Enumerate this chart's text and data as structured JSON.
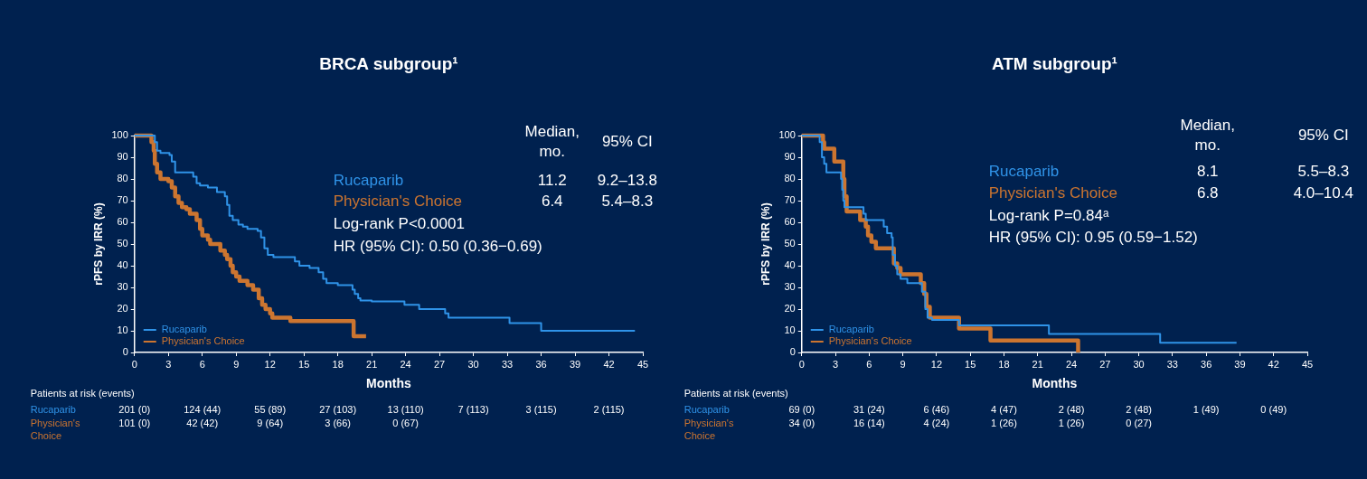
{
  "chart_data": [
    {
      "type": "step",
      "title": "BRCA subgroup¹",
      "xlabel": "Months",
      "ylabel": "rPFS by IRR (%)",
      "xlim": [
        0,
        45
      ],
      "xticks": [
        0,
        3,
        6,
        9,
        12,
        15,
        18,
        21,
        24,
        27,
        30,
        33,
        36,
        39,
        42,
        45
      ],
      "ylim": [
        0,
        100
      ],
      "yticks": [
        0,
        10,
        20,
        30,
        40,
        50,
        60,
        70,
        80,
        90,
        100
      ],
      "grid": false,
      "legend": "bottom left",
      "series": [
        {
          "name": "Rucaparib",
          "color": "#2f93e8",
          "x": [
            0,
            1.7,
            1.8,
            2.0,
            2.3,
            3.1,
            3.3,
            3.6,
            4.8,
            5.2,
            5.5,
            5.8,
            6.5,
            7.3,
            8.0,
            8.2,
            8.4,
            8.7,
            9.2,
            9.6,
            10.0,
            10.9,
            11.2,
            11.5,
            11.8,
            12.3,
            13.8,
            14.2,
            14.6,
            15.5,
            16.3,
            16.7,
            17.0,
            18.0,
            19.1,
            19.3,
            19.5,
            19.8,
            20.0,
            21.0,
            23.9,
            25.2,
            27.5,
            27.8,
            33.2,
            36.0,
            44.3
          ],
          "values": [
            100,
            100,
            97,
            93,
            92,
            91,
            88,
            83,
            83,
            81,
            78,
            77,
            76,
            74,
            72,
            68,
            63,
            61,
            59,
            58,
            57,
            56,
            53,
            48,
            45,
            44,
            44,
            42,
            40,
            39,
            37,
            34,
            32,
            31,
            31,
            29,
            27,
            25,
            24,
            23.5,
            22,
            20,
            18,
            16,
            13.5,
            10,
            10
          ]
        },
        {
          "name": "Physician's Choice",
          "color": "#cc7530",
          "x": [
            0,
            1.0,
            1.5,
            1.7,
            1.8,
            2.0,
            2.3,
            3.0,
            3.3,
            3.6,
            3.9,
            4.2,
            4.6,
            4.9,
            5.5,
            5.8,
            6.0,
            6.5,
            6.7,
            7.4,
            7.6,
            8.0,
            8.2,
            8.5,
            8.7,
            9.0,
            9.3,
            10.0,
            10.2,
            10.5,
            11.0,
            11.3,
            11.6,
            12.0,
            12.2,
            13.6,
            13.8,
            19.4,
            20.5
          ],
          "values": [
            100,
            100,
            97,
            93,
            87,
            83,
            80,
            79,
            76,
            72,
            69,
            67,
            66,
            64,
            61,
            57,
            54,
            52,
            50,
            50,
            47,
            45,
            43,
            40,
            37,
            35,
            33,
            31,
            31,
            29,
            25,
            22,
            20,
            18,
            16,
            16,
            14.5,
            7.5,
            7.5
          ]
        }
      ],
      "annotations": [
        "Median, mo.",
        "95% CI",
        "11.2",
        "9.2–13.8",
        "6.4",
        "5.4–8.3",
        "Log-rank P<0.0001",
        "HR (95% CI): 0.50 (0.36−0.69)",
        "Patients at risk (events)",
        "201 (0)",
        "124 (44)",
        "55 (89)",
        "27 (103)",
        "13 (110)",
        "7 (113)",
        "3 (115)",
        "2 (115)",
        "101 (0)",
        "42 (42)",
        "9 (64)",
        "3 (66)",
        "0 (67)"
      ]
    },
    {
      "type": "step",
      "title": "ATM subgroup¹",
      "xlabel": "Months",
      "ylabel": "rPFS by IRR (%)",
      "xlim": [
        0,
        45
      ],
      "xticks": [
        0,
        3,
        6,
        9,
        12,
        15,
        18,
        21,
        24,
        27,
        30,
        33,
        36,
        39,
        42,
        45
      ],
      "ylim": [
        0,
        100
      ],
      "yticks": [
        0,
        10,
        20,
        30,
        40,
        50,
        60,
        70,
        80,
        90,
        100
      ],
      "grid": false,
      "legend": "bottom left",
      "series": [
        {
          "name": "Rucaparib",
          "color": "#2f93e8",
          "x": [
            0,
            1.3,
            1.6,
            1.8,
            2.0,
            2.2,
            3.4,
            3.5,
            3.6,
            3.7,
            3.8,
            5.3,
            5.5,
            5.7,
            7.1,
            7.3,
            7.6,
            8.0,
            8.1,
            8.3,
            8.5,
            8.8,
            9.4,
            10.6,
            10.7,
            11.0,
            11.2,
            11.6,
            13.8,
            14.0,
            21.9,
            22.0,
            31.8,
            31.9,
            38.7
          ],
          "values": [
            100,
            100,
            97,
            90,
            87,
            83,
            83,
            80,
            75,
            70,
            67,
            67,
            64,
            61,
            61,
            58,
            55,
            53,
            45,
            40,
            36,
            34,
            32,
            32,
            28,
            20,
            16,
            15,
            15,
            12.5,
            12.5,
            8.5,
            8.5,
            4.5,
            4.5
          ]
        },
        {
          "name": "Physician's Choice",
          "color": "#cc7530",
          "x": [
            0,
            1.8,
            1.9,
            2.0,
            2.8,
            2.9,
            3.6,
            3.7,
            3.8,
            4.0,
            5.0,
            5.2,
            5.7,
            5.9,
            6.2,
            6.6,
            8.0,
            8.2,
            8.5,
            8.8,
            10.5,
            10.6,
            10.9,
            11.1,
            11.4,
            13.9,
            14.0,
            16.6,
            16.8,
            24.5,
            24.6
          ],
          "values": [
            100,
            100,
            97,
            94,
            94,
            88,
            88,
            80,
            72,
            65,
            65,
            61,
            58,
            54,
            51,
            48,
            48,
            41,
            39,
            36,
            36,
            32,
            27,
            21,
            16,
            16,
            11,
            11,
            5.5,
            5.5,
            0
          ]
        }
      ],
      "annotations": [
        "Median, mo.",
        "95% CI",
        "8.1",
        "5.5–8.3",
        "6.8",
        "4.0–10.4",
        "Log-rank P=0.84ᵃ",
        "HR (95% CI): 0.95 (0.59−1.52)",
        "Patients at risk (events)",
        "69 (0)",
        "31 (24)",
        "6 (46)",
        "4 (47)",
        "2 (48)",
        "2 (48)",
        "1 (49)",
        "0 (49)",
        "34 (0)",
        "16 (14)",
        "4 (24)",
        "1 (26)",
        "1 (26)",
        "0 (27)"
      ]
    }
  ]
}
